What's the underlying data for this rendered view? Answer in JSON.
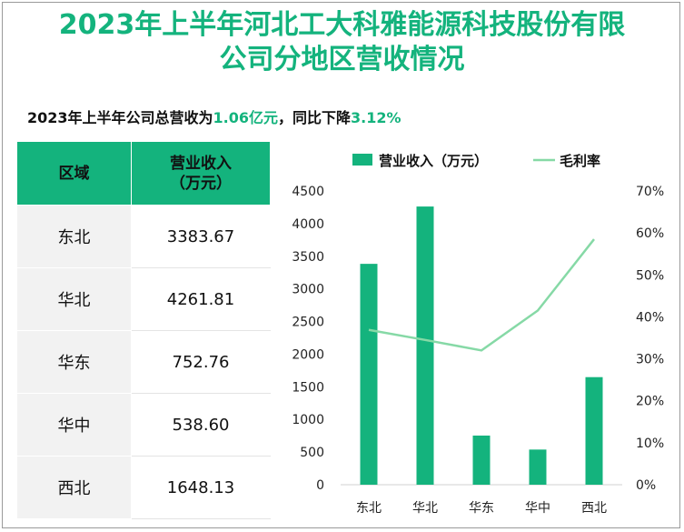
{
  "title_line1": "2023年上半年河北工大科雅能源科技股份有限",
  "title_line2": "公司分地区营收情况",
  "summary": {
    "prefix": "2023年上半年公司总营收为",
    "revenue": "1.06亿元",
    "mid": "，同比下降",
    "change": "3.12%"
  },
  "table": {
    "headers": [
      "区域",
      "营业收入\n（万元）"
    ],
    "rows": [
      [
        "东北",
        "3383.67"
      ],
      [
        "华北",
        "4261.81"
      ],
      [
        "华东",
        "752.76"
      ],
      [
        "华中",
        "538.60"
      ],
      [
        "西北",
        "1648.13"
      ]
    ]
  },
  "colors": {
    "accent": "#14b37d",
    "line": "#86d9a6",
    "cell_bg": "#f2f2f2"
  },
  "chart_data": {
    "type": "bar",
    "categories": [
      "东北",
      "华北",
      "华东",
      "华中",
      "西北"
    ],
    "series": [
      {
        "name": "营业收入（万元）",
        "type": "bar",
        "axis": "left",
        "values": [
          3383.67,
          4261.81,
          752.76,
          538.6,
          1648.13
        ]
      },
      {
        "name": "毛利率",
        "type": "line",
        "axis": "right",
        "values": [
          36.9,
          34.5,
          32.0,
          41.5,
          58.5
        ]
      }
    ],
    "y_left": {
      "min": 0,
      "max": 4500,
      "step": 500
    },
    "y_right": {
      "min": 0,
      "max": 70,
      "step": 10,
      "suffix": "%"
    },
    "legend": "top",
    "grid": false
  }
}
